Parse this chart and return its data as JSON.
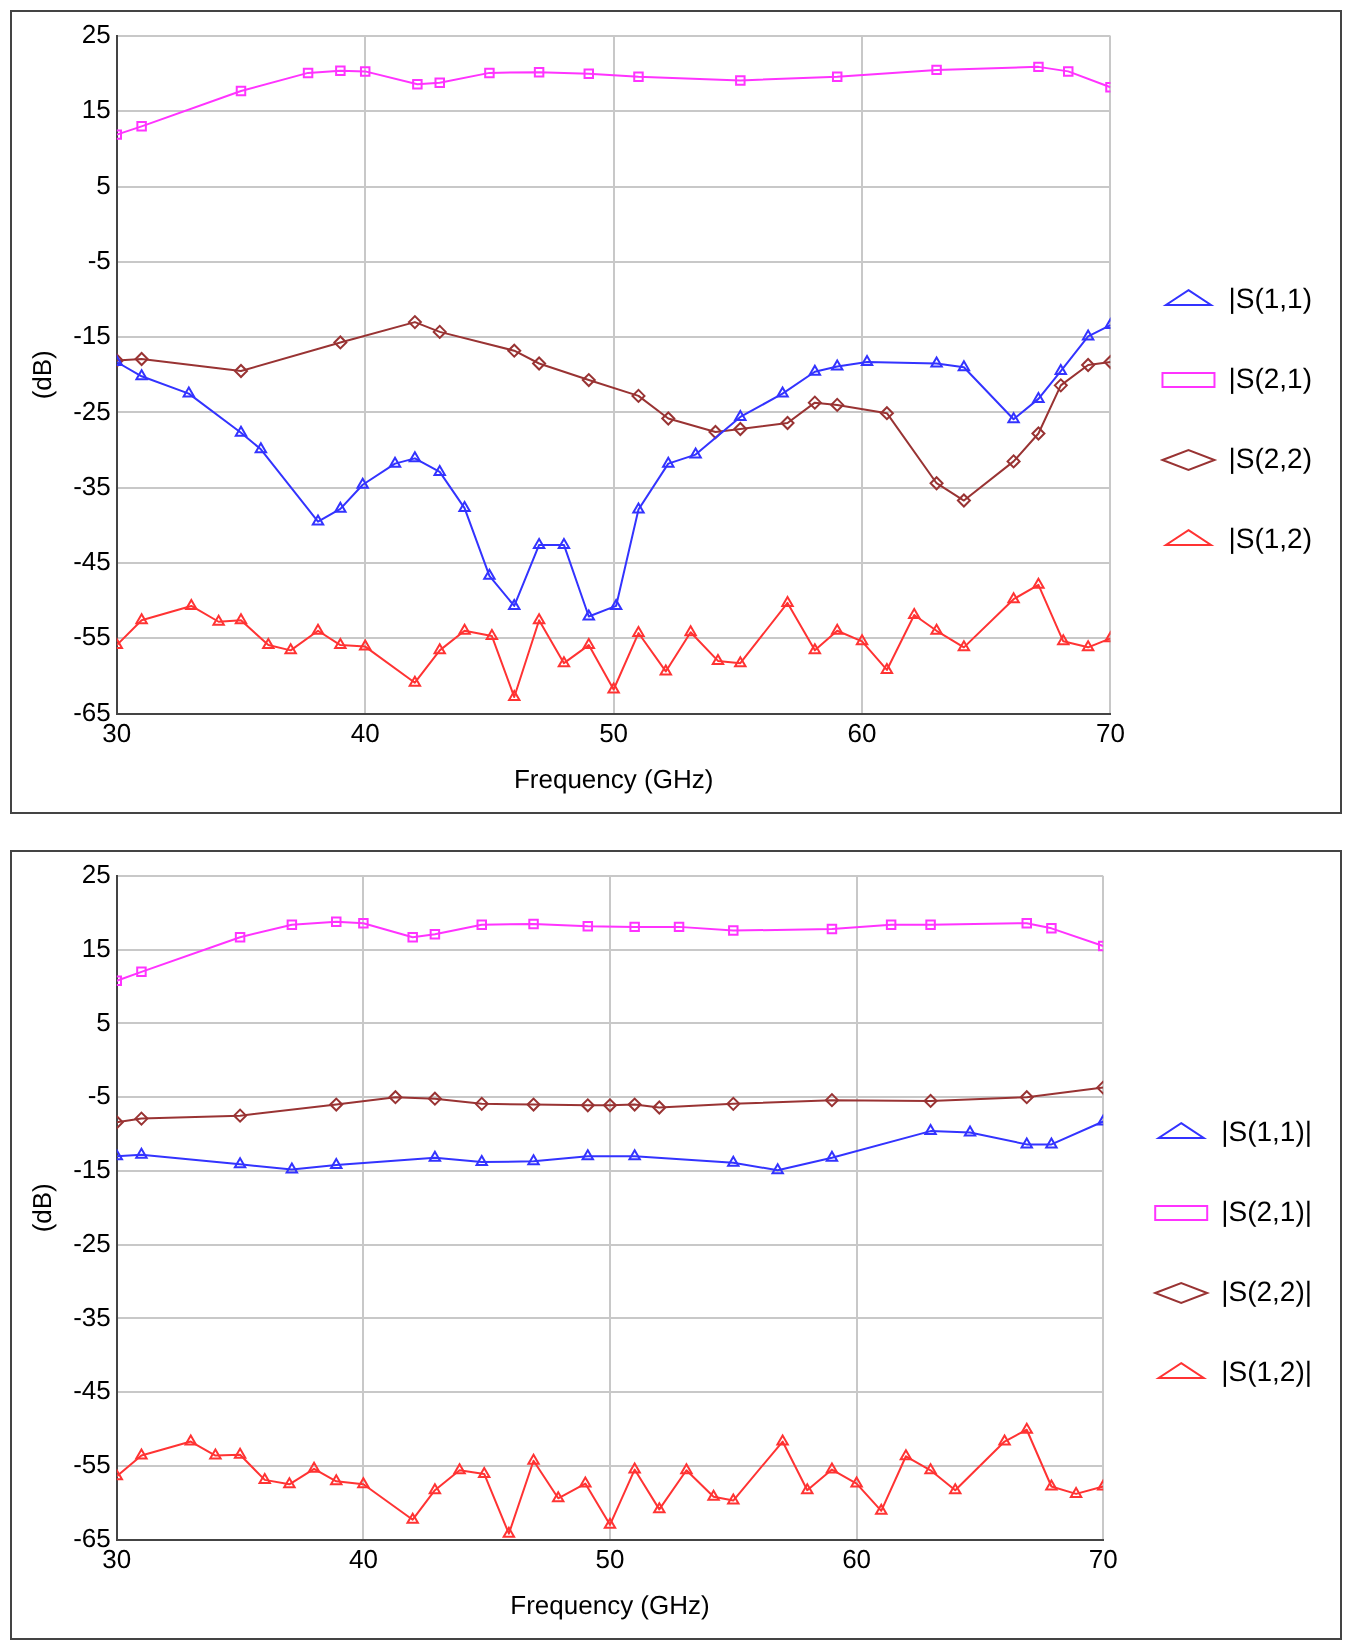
{
  "chart_data": [
    {
      "type": "line",
      "xlabel": "Frequency (GHz)",
      "ylabel": "(dB)",
      "xlim": [
        30,
        70
      ],
      "xticks": [
        30,
        40,
        50,
        60,
        70
      ],
      "ylim": [
        -65,
        25
      ],
      "yticks": [
        -65,
        -55,
        -45,
        -35,
        -25,
        -15,
        -5,
        5,
        15,
        25
      ],
      "grid": true,
      "legend": "right",
      "line_style": "solid",
      "series": [
        {
          "name": "|S(1,1)",
          "color": "#3333ff",
          "marker": "triangle",
          "x": [
            30,
            31,
            32.9,
            35,
            35.8,
            38.1,
            39,
            39.9,
            41.2,
            42,
            43,
            44,
            45,
            46,
            47,
            48,
            49,
            50.1,
            51,
            52.2,
            53.3,
            55.1,
            56.8,
            58.1,
            59,
            60.2,
            63,
            64.1,
            66.1,
            67.1,
            68,
            69.1,
            70
          ],
          "values": [
            -18.3,
            -20.2,
            -22.5,
            -27.7,
            -29.9,
            -39.5,
            -37.8,
            -34.6,
            -31.8,
            -31.1,
            -32.9,
            -37.7,
            -46.7,
            -50.7,
            -42.6,
            -42.6,
            -52.1,
            -50.7,
            -37.9,
            -31.8,
            -30.6,
            -25.6,
            -22.5,
            -19.6,
            -18.9,
            -18.3,
            -18.5,
            -19,
            -25.9,
            -23.2,
            -19.5,
            -14.9,
            -13.4
          ]
        },
        {
          "name": "|S(2,1)",
          "color": "#ff33ff",
          "marker": "square",
          "x": [
            30,
            31,
            35,
            37.7,
            39,
            40,
            42.1,
            43,
            45,
            47,
            49,
            51,
            55.1,
            59,
            63,
            67.1,
            68.3,
            70
          ],
          "values": [
            11.9,
            13,
            17.7,
            20.1,
            20.4,
            20.3,
            18.6,
            18.8,
            20.1,
            20.2,
            20,
            19.6,
            19.1,
            19.6,
            20.5,
            20.9,
            20.3,
            18.2
          ]
        },
        {
          "name": "|S(2,2)",
          "color": "#993333",
          "marker": "diamond",
          "x": [
            30,
            31,
            35,
            39,
            42,
            43,
            46,
            47,
            49,
            51,
            52.2,
            54.1,
            55.1,
            57,
            58.1,
            59,
            61,
            63,
            64.1,
            66.1,
            67.1,
            68,
            69.1,
            70
          ],
          "values": [
            -18.1,
            -17.9,
            -19.5,
            -15.7,
            -13,
            -14.3,
            -16.8,
            -18.5,
            -20.7,
            -22.8,
            -25.8,
            -27.6,
            -27.2,
            -26.4,
            -23.7,
            -24,
            -25.1,
            -34.4,
            -36.7,
            -31.5,
            -27.8,
            -21.4,
            -18.7,
            -18.3
          ]
        },
        {
          "name": "|S(1,2)",
          "color": "#ff3333",
          "marker": "triangle",
          "x": [
            30,
            31,
            33,
            34.1,
            35,
            36.1,
            37,
            38.1,
            39,
            40,
            42,
            43,
            44,
            45.1,
            46,
            47,
            48,
            49,
            50,
            51,
            52.1,
            53.1,
            54.2,
            55.1,
            57,
            58.1,
            59,
            60,
            61,
            62.1,
            63,
            64.1,
            66.1,
            67.1,
            68.1,
            69.1,
            70
          ],
          "values": [
            -55.9,
            -52.6,
            -50.7,
            -52.8,
            -52.6,
            -55.9,
            -56.6,
            -54,
            -55.9,
            -56.1,
            -60.9,
            -56.6,
            -54,
            -54.7,
            -62.8,
            -52.6,
            -58.3,
            -55.9,
            -61.8,
            -54.3,
            -59.4,
            -54.2,
            -58,
            -58.3,
            -50.3,
            -56.6,
            -54,
            -55.4,
            -59.2,
            -51.9,
            -54,
            -56.2,
            -49.8,
            -47.9,
            -55.4,
            -56.2,
            -55
          ]
        }
      ]
    },
    {
      "type": "line",
      "xlabel": "Frequency (GHz)",
      "ylabel": "(dB)",
      "xlim": [
        30,
        70
      ],
      "xticks": [
        30,
        40,
        50,
        60,
        70
      ],
      "ylim": [
        -65,
        25
      ],
      "yticks": [
        -65,
        -55,
        -45,
        -35,
        -25,
        -15,
        -5,
        5,
        15,
        25
      ],
      "grid": true,
      "legend": "right",
      "line_style": "solid",
      "series": [
        {
          "name": "|S(1,1)|",
          "color": "#3333ff",
          "marker": "triangle",
          "x": [
            30,
            31,
            35,
            37.1,
            38.9,
            42.9,
            44.8,
            46.9,
            49.1,
            51,
            55,
            56.8,
            59,
            63,
            64.6,
            66.9,
            67.9,
            70
          ],
          "values": [
            -13,
            -12.8,
            -14.1,
            -14.8,
            -14.2,
            -13.2,
            -13.8,
            -13.7,
            -13,
            -13,
            -13.9,
            -14.9,
            -13.2,
            -9.6,
            -9.8,
            -11.4,
            -11.4,
            -8.3
          ]
        },
        {
          "name": "|S(2,1)|",
          "color": "#ff33ff",
          "marker": "square",
          "x": [
            30,
            31,
            35,
            37.1,
            38.9,
            40,
            42,
            42.9,
            44.8,
            46.9,
            49.1,
            51,
            52.8,
            55,
            59,
            61.4,
            63,
            66.9,
            67.9,
            70
          ],
          "values": [
            10.8,
            12,
            16.7,
            18.4,
            18.8,
            18.6,
            16.7,
            17.1,
            18.4,
            18.5,
            18.2,
            18.1,
            18.1,
            17.6,
            17.8,
            18.4,
            18.4,
            18.6,
            17.9,
            15.5
          ]
        },
        {
          "name": "|S(2,2)|",
          "color": "#993333",
          "marker": "diamond",
          "x": [
            30,
            31,
            35,
            38.9,
            41.3,
            42.9,
            44.8,
            46.9,
            49.1,
            50,
            51,
            52,
            55,
            59,
            63,
            66.9,
            70
          ],
          "values": [
            -8.4,
            -7.9,
            -7.5,
            -6,
            -5,
            -5.2,
            -5.9,
            -6,
            -6.1,
            -6.1,
            -6,
            -6.4,
            -5.9,
            -5.4,
            -5.5,
            -5,
            -3.7
          ]
        },
        {
          "name": "|S(1,2)|",
          "color": "#ff3333",
          "marker": "triangle",
          "x": [
            30,
            31,
            33,
            34,
            35,
            36,
            37,
            38,
            38.9,
            40,
            42,
            42.9,
            43.9,
            44.9,
            45.9,
            46.9,
            47.9,
            49,
            50,
            51,
            52,
            53.1,
            54.2,
            55,
            57,
            58,
            59,
            60,
            61,
            62,
            63,
            64,
            66,
            66.9,
            67.9,
            68.9,
            70
          ],
          "values": [
            -56.4,
            -53.6,
            -51.7,
            -53.6,
            -53.5,
            -56.9,
            -57.5,
            -55.4,
            -57.1,
            -57.5,
            -62.3,
            -58.3,
            -55.6,
            -56.1,
            -64.2,
            -54.3,
            -59.4,
            -57.4,
            -63,
            -55.5,
            -60.9,
            -55.6,
            -59.2,
            -59.7,
            -51.7,
            -58.3,
            -55.5,
            -57.4,
            -61.1,
            -53.7,
            -55.6,
            -58.3,
            -51.7,
            -50.1,
            -57.8,
            -58.8,
            -57.8
          ]
        }
      ]
    }
  ]
}
